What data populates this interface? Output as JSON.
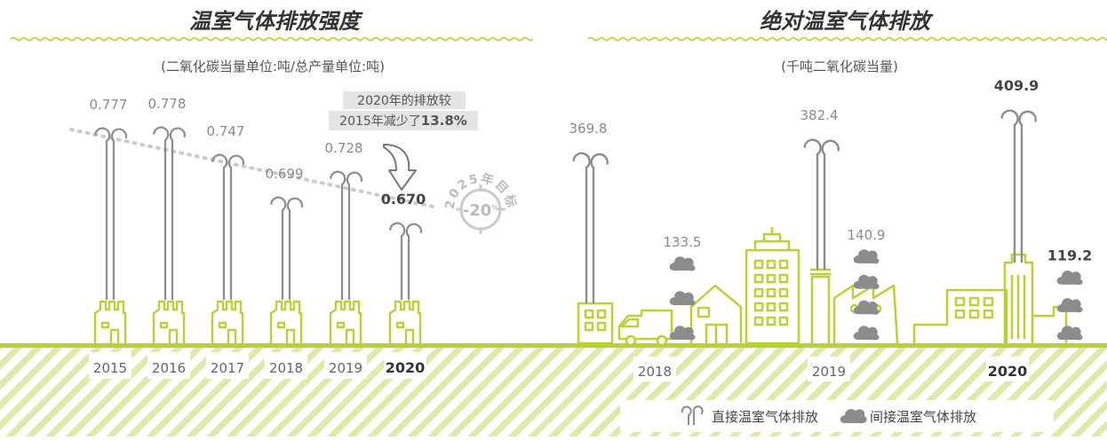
{
  "chart_data": [
    {
      "type": "bar",
      "title": "温室气体排放强度",
      "subtitle": "(二氧化碳当量单位:吨/总产量单位:吨)",
      "categories": [
        "2015",
        "2016",
        "2017",
        "2018",
        "2019",
        "2020"
      ],
      "values": [
        0.777,
        0.778,
        0.747,
        0.699,
        0.728,
        0.67
      ],
      "value_labels": [
        "0.777",
        "0.778",
        "0.747",
        "0.699",
        "0.728",
        "0.670"
      ],
      "highlight": "2020",
      "annotation": {
        "line1": "2020年的排放较",
        "line2_prefix": "2015年减少了",
        "line2_value": "13.8%"
      },
      "target": {
        "label": "2025年目标",
        "value_text": "-20",
        "unit": "%"
      },
      "colors": {
        "stack": "#8c8c8c",
        "factory": "#b5d334",
        "trend": "#cccccc"
      }
    },
    {
      "type": "bar",
      "title": "绝对温室气体排放",
      "subtitle": "(千吨二氧化碳当量)",
      "categories": [
        "2018",
        "2019",
        "2020"
      ],
      "series": [
        {
          "name": "直接温室气体排放",
          "values": [
            369.8,
            382.4,
            409.9
          ],
          "value_labels": [
            "369.8",
            "382.4",
            "409.9"
          ]
        },
        {
          "name": "间接温室气体排放",
          "values": [
            133.5,
            140.9,
            119.2
          ],
          "value_labels": [
            "133.5",
            "140.9",
            "119.2"
          ]
        }
      ],
      "highlight": "2020",
      "legend_placement": "bottom-right",
      "colors": {
        "stack": "#8c8c8c",
        "building": "#b5d334",
        "smoke": "#8c8c8c"
      }
    }
  ]
}
